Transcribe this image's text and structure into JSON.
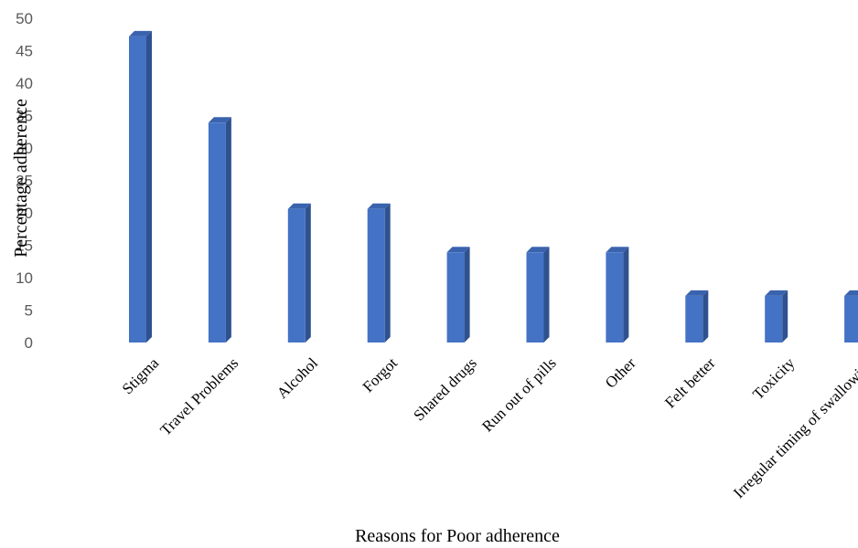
{
  "chart_data": {
    "type": "bar",
    "title": "",
    "xlabel": "Reasons for  Poor adherence",
    "ylabel": "Percentage adherence",
    "ylim": [
      0,
      50
    ],
    "yticks": [
      0,
      5,
      10,
      15,
      20,
      25,
      30,
      35,
      40,
      45,
      50
    ],
    "categories": [
      "Stigma",
      "Travel Problems",
      "Alcohol",
      "Forgot",
      "Shared drugs",
      "Run out of pills",
      "Other",
      "Felt better",
      "Toxicity",
      "Irregular timing of swallowing"
    ],
    "values": [
      47.2,
      33.9,
      20.6,
      20.6,
      13.9,
      13.9,
      13.9,
      7.2,
      7.2,
      7.2
    ],
    "grid": false,
    "legend": "none",
    "bar_color": "#4472C4",
    "bar_side_color": "#2F528F",
    "bar_top_color": "#3A63AE"
  }
}
